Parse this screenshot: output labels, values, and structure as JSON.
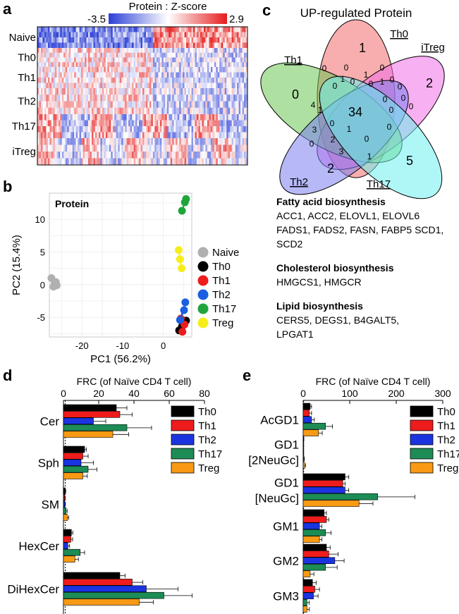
{
  "colors": {
    "naive": "#b0b0b0",
    "th0": "#000000",
    "th1": "#ee1c1c",
    "th2": "#1b5fe0",
    "th17": "#1fa53b",
    "treg": "#f6ee1a",
    "bar_th0": "#000000",
    "bar_th1": "#ee1c1c",
    "bar_th2": "#1b34e0",
    "bar_th17": "#1d8c55",
    "bar_treg": "#f89a13"
  },
  "panel_a": {
    "label": "a",
    "colorbar_title": "Protein : Z-score",
    "min_label": "-3.5",
    "max_label": "2.9",
    "rows": [
      "Naive",
      "Th0",
      "Th1",
      "Th2",
      "Th17",
      "iTreg"
    ]
  },
  "panel_b": {
    "label": "b",
    "title": "Protein",
    "legend": [
      "Naive",
      "Th0",
      "Th1",
      "Th2",
      "Th17",
      "Treg"
    ]
  },
  "panel_c": {
    "label": "c",
    "title": "UP-regulated Protein",
    "sets": [
      "Th0",
      "iTreg",
      "Th1",
      "Th2",
      "Th17"
    ],
    "unique_counts": {
      "th0": "1",
      "itreg": "2",
      "th1": "0",
      "th2": "2",
      "th17": "5"
    },
    "center": "34",
    "small_counts": [
      "0",
      "0",
      "1",
      "0",
      "0",
      "0",
      "0",
      "0",
      "0",
      "1",
      "0",
      "0",
      "1",
      "4",
      "1",
      "3",
      "2",
      "0",
      "0",
      "1",
      "3",
      "1",
      "0",
      "0",
      "0",
      "0"
    ],
    "gene_groups": [
      {
        "heading": "Fatty acid biosynthesis",
        "genes": "ACC1, ACC2, ELOVL1, ELOVL6 FADS1, FADS2, FASN, FABP5 SCD1, SCD2"
      },
      {
        "heading": "Cholesterol biosynthesis",
        "genes": "HMGCS1, HMGCR"
      },
      {
        "heading": "Lipid biosynthesis",
        "genes": "CERS5, DEGS1, B4GALT5, LPGAT1"
      }
    ]
  },
  "panel_d": {
    "label": "d",
    "axis_title": "FRC (of Naïve CD4 T cell)",
    "legend": [
      "Th0",
      "Th1",
      "Th2",
      "Th17",
      "Treg"
    ]
  },
  "panel_e": {
    "label": "e",
    "axis_title": "FRC (of Naïve CD4 T cell)",
    "legend": [
      "Th0",
      "Th1",
      "Th2",
      "Th17",
      "Treg"
    ]
  },
  "chart_data": [
    {
      "type": "heatmap",
      "title": "Protein : Z-score",
      "rows": [
        "Naive",
        "Th0",
        "Th1",
        "Th2",
        "Th17",
        "iTreg"
      ],
      "zlim": [
        -3.5,
        2.9
      ],
      "colormap": "blue-white-red"
    },
    {
      "type": "scatter",
      "title": "Protein",
      "xlabel": "PC1 (56.2%)",
      "ylabel": "PC2 (15.4%)",
      "xlim": [
        -28,
        7
      ],
      "ylim": [
        -8,
        14
      ],
      "xticks": [
        -20,
        -10,
        0
      ],
      "yticks": [
        -5,
        0,
        5,
        10
      ],
      "series": [
        {
          "name": "Naive",
          "points": [
            [
              -27.5,
              1
            ],
            [
              -26.7,
              0.2
            ],
            [
              -26.4,
              0.4
            ],
            [
              -26.2,
              -0.1
            ],
            [
              -27.0,
              -0.3
            ]
          ]
        },
        {
          "name": "Th0",
          "points": [
            [
              3.9,
              -7
            ],
            [
              5.6,
              -5.5
            ],
            [
              4.6,
              -6.4
            ]
          ]
        },
        {
          "name": "Th1",
          "points": [
            [
              4.3,
              -5.2
            ],
            [
              5.2,
              -6.1
            ],
            [
              4.7,
              -7.2
            ]
          ]
        },
        {
          "name": "Th2",
          "points": [
            [
              5.4,
              -2.7
            ],
            [
              4.1,
              -5.4
            ],
            [
              5.1,
              -3.9
            ]
          ]
        },
        {
          "name": "Th17",
          "points": [
            [
              4.6,
              11.3
            ],
            [
              5.3,
              12.6
            ],
            [
              5.6,
              13.1
            ]
          ]
        },
        {
          "name": "Treg",
          "points": [
            [
              3.8,
              5.3
            ],
            [
              4.1,
              3.9
            ],
            [
              4.5,
              2.5
            ]
          ]
        }
      ]
    },
    {
      "type": "bar",
      "orientation": "horizontal",
      "xlabel": "FRC (of Naïve CD4 T cell)",
      "xlim": [
        0,
        80
      ],
      "xticks": [
        0,
        20,
        40,
        60,
        80
      ],
      "reference": 1,
      "categories": [
        "Cer",
        "Sph",
        "SM",
        "HexCer",
        "DiHexCer"
      ],
      "series": [
        {
          "name": "Th0",
          "values": [
            30,
            12,
            1,
            4.5,
            32
          ],
          "errors": [
            6,
            1,
            0.3,
            0.8,
            3
          ]
        },
        {
          "name": "Th1",
          "values": [
            32,
            11,
            0.7,
            4.2,
            39
          ],
          "errors": [
            7,
            3,
            0.3,
            1,
            6
          ]
        },
        {
          "name": "Th2",
          "values": [
            17,
            10,
            0.8,
            2.5,
            47
          ],
          "errors": [
            7,
            7,
            0.3,
            1,
            18
          ]
        },
        {
          "name": "Th17",
          "values": [
            36,
            14,
            1.5,
            9.5,
            57
          ],
          "errors": [
            14,
            5,
            0.6,
            2.5,
            16
          ]
        },
        {
          "name": "Treg",
          "values": [
            28,
            11,
            2.2,
            6.5,
            43
          ],
          "errors": [
            9,
            2.5,
            0.8,
            2,
            8
          ]
        }
      ]
    },
    {
      "type": "bar",
      "orientation": "horizontal",
      "xlabel": "FRC (of Naïve CD4 T cell)",
      "xlim": [
        0,
        300
      ],
      "xticks": [
        0,
        100,
        200,
        300
      ],
      "reference": 1,
      "categories": [
        "AcGD1",
        "GD1 [2NeuGc]",
        "GD1 [NeuGc]",
        "GM1",
        "GM2",
        "GM3"
      ],
      "series": [
        {
          "name": "Th0",
          "values": [
            15,
            1,
            90,
            45,
            50,
            20
          ],
          "errors": [
            3,
            0.5,
            8,
            5,
            8,
            8
          ]
        },
        {
          "name": "Th1",
          "values": [
            13,
            0.5,
            85,
            50,
            55,
            25
          ],
          "errors": [
            5,
            0.5,
            5,
            5,
            20,
            10
          ]
        },
        {
          "name": "Th2",
          "values": [
            18,
            0.5,
            90,
            35,
            68,
            22
          ],
          "errors": [
            6,
            0.5,
            8,
            5,
            20,
            10
          ]
        },
        {
          "name": "Th17",
          "values": [
            48,
            1.5,
            160,
            48,
            48,
            8
          ],
          "errors": [
            15,
            1,
            80,
            12,
            25,
            5
          ]
        },
        {
          "name": "Treg",
          "values": [
            33,
            3,
            120,
            35,
            15,
            8
          ],
          "errors": [
            8,
            2,
            30,
            5,
            8,
            5
          ]
        }
      ]
    }
  ]
}
